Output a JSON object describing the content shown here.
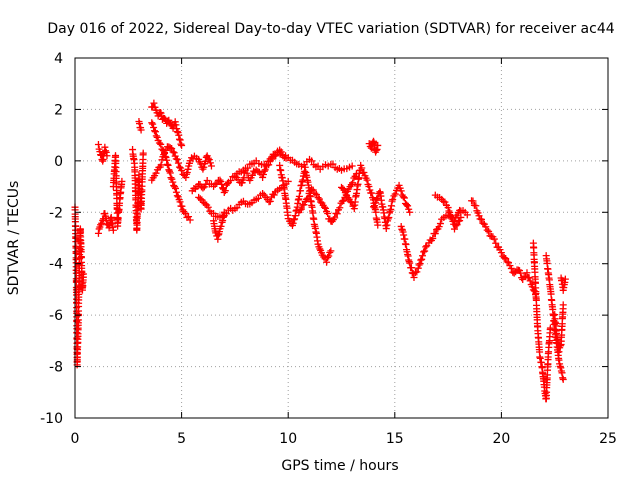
{
  "chart_data": {
    "type": "scatter",
    "title": "Day 016 of 2022, Sidereal Day-to-day VTEC variation (SDTVAR) for receiver ac44",
    "xlabel": "GPS time / hours",
    "ylabel": "SDTVAR / TECUs",
    "xlim": [
      0,
      25
    ],
    "ylim": [
      -10,
      4
    ],
    "xticks": [
      0,
      5,
      10,
      15,
      20,
      25
    ],
    "yticks": [
      -10,
      -8,
      -6,
      -4,
      -2,
      0,
      2,
      4
    ],
    "grid": true,
    "marker": "+",
    "color": "#ff0000",
    "series": [
      {
        "name": "SDTVAR",
        "segments": [
          {
            "x": [
              0.0,
              0.05,
              0.1,
              0.15,
              0.2,
              0.25,
              0.3,
              0.35,
              0.4
            ],
            "y": [
              -1.8,
              -3.5,
              -7.9,
              -6.5,
              -4.2,
              -2.6,
              -3.8,
              -5.0,
              -4.4
            ]
          },
          {
            "x": [
              1.1,
              1.2,
              1.3,
              1.4,
              1.5
            ],
            "y": [
              0.6,
              0.3,
              0.0,
              0.5,
              0.2
            ]
          },
          {
            "x": [
              1.1,
              1.2,
              1.3,
              1.4,
              1.5,
              1.6,
              1.7,
              1.8
            ],
            "y": [
              -2.8,
              -2.5,
              -2.3,
              -2.0,
              -2.4,
              -2.6,
              -2.2,
              -2.7
            ]
          },
          {
            "x": [
              1.8,
              1.9,
              2.0,
              2.1,
              2.2
            ],
            "y": [
              -1.0,
              0.2,
              -2.5,
              -1.5,
              -0.8
            ]
          },
          {
            "x": [
              2.7,
              2.8,
              2.9,
              3.0,
              3.1,
              3.2
            ],
            "y": [
              0.4,
              -0.2,
              -2.7,
              -0.6,
              -1.9,
              0.3
            ]
          },
          {
            "x": [
              3.0,
              3.05,
              3.1
            ],
            "y": [
              1.5,
              1.3,
              1.2
            ]
          },
          {
            "x": [
              3.6,
              3.7,
              3.8,
              3.9,
              4.0,
              4.1,
              4.2,
              4.3,
              4.4,
              4.5,
              4.6,
              4.7,
              4.8,
              4.9,
              5.0
            ],
            "y": [
              2.1,
              2.2,
              2.0,
              1.8,
              1.9,
              1.6,
              1.7,
              1.5,
              1.6,
              1.4,
              1.3,
              1.5,
              1.2,
              0.9,
              0.6
            ]
          },
          {
            "x": [
              3.6,
              3.8,
              4.0,
              4.2,
              4.4,
              4.6,
              4.8,
              5.0,
              5.2,
              5.4,
              5.6,
              5.8,
              6.0,
              6.2,
              6.4
            ],
            "y": [
              -0.7,
              -0.5,
              -0.2,
              0.3,
              0.6,
              0.4,
              0.0,
              -0.4,
              -0.6,
              0.0,
              0.2,
              0.1,
              -0.3,
              0.2,
              -0.2
            ]
          },
          {
            "x": [
              3.6,
              3.9,
              4.2,
              4.5,
              4.8,
              5.1,
              5.4
            ],
            "y": [
              1.5,
              0.8,
              0.3,
              -0.6,
              -1.3,
              -2.0,
              -2.3
            ]
          },
          {
            "x": [
              5.5,
              5.8,
              6.0,
              6.2,
              6.5,
              6.8,
              7.0,
              7.2,
              7.5,
              7.8,
              8.0,
              8.2,
              8.5,
              8.8,
              9.0,
              9.3,
              9.6,
              9.9
            ],
            "y": [
              -1.2,
              -0.9,
              -1.1,
              -0.8,
              -1.0,
              -0.7,
              -1.2,
              -0.8,
              -0.6,
              -0.9,
              -0.4,
              -0.7,
              -0.3,
              -0.6,
              -0.1,
              0.2,
              0.4,
              0.1
            ]
          },
          {
            "x": [
              5.8,
              6.1,
              6.4,
              6.7,
              7.0,
              7.3,
              7.6,
              7.9,
              8.2,
              8.5,
              8.8,
              9.1,
              9.4,
              9.7,
              10.0
            ],
            "y": [
              -1.4,
              -1.7,
              -2.0,
              -2.2,
              -2.1,
              -1.9,
              -1.8,
              -1.6,
              -1.7,
              -1.5,
              -1.3,
              -1.6,
              -1.2,
              -1.0,
              -0.8
            ]
          },
          {
            "x": [
              6.5,
              6.6,
              6.7,
              6.8,
              6.9,
              7.0
            ],
            "y": [
              -2.3,
              -2.8,
              -3.0,
              -2.6,
              -2.4,
              -2.0
            ]
          },
          {
            "x": [
              7.5,
              8.0,
              8.5,
              9.0,
              9.5,
              10.0,
              10.5,
              11.0,
              11.5,
              12.0,
              12.5,
              13.0
            ],
            "y": [
              -0.6,
              -0.3,
              0.0,
              -0.2,
              0.3,
              0.1,
              -0.2,
              0.0,
              -0.3,
              -0.1,
              -0.4,
              -0.2
            ]
          },
          {
            "x": [
              9.6,
              9.8,
              10.0,
              10.2,
              10.4,
              10.6,
              10.8,
              11.0,
              11.2,
              11.4,
              11.6,
              11.8,
              12.0
            ],
            "y": [
              -0.2,
              -1.0,
              -2.2,
              -2.5,
              -1.9,
              -1.0,
              -0.3,
              -1.2,
              -2.3,
              -3.2,
              -3.7,
              -3.9,
              -3.5
            ]
          },
          {
            "x": [
              10.5,
              10.8,
              11.1,
              11.4,
              11.7,
              12.0,
              12.3,
              12.6,
              12.9,
              13.2
            ],
            "y": [
              -2.0,
              -1.6,
              -1.1,
              -1.4,
              -1.8,
              -2.4,
              -2.0,
              -1.5,
              -1.0,
              -0.5
            ]
          },
          {
            "x": [
              12.5,
              12.8,
              13.1,
              13.4,
              13.7,
              14.0,
              14.2
            ],
            "y": [
              -1.0,
              -1.4,
              -1.8,
              -0.2,
              -0.8,
              -1.5,
              -2.5
            ]
          },
          {
            "x": [
              13.8,
              13.9,
              14.0,
              14.1,
              14.2
            ],
            "y": [
              0.7,
              0.5,
              0.8,
              0.3,
              0.6
            ]
          },
          {
            "x": [
              14.0,
              14.3,
              14.6,
              14.9,
              15.2,
              15.5,
              15.7
            ],
            "y": [
              -1.8,
              -1.2,
              -2.6,
              -1.5,
              -1.0,
              -1.6,
              -2.0
            ]
          },
          {
            "x": [
              15.3,
              15.5,
              15.7,
              15.9,
              16.1,
              16.3,
              16.5
            ],
            "y": [
              -2.5,
              -3.2,
              -4.0,
              -4.5,
              -4.2,
              -3.7,
              -3.3
            ]
          },
          {
            "x": [
              16.6,
              16.9,
              17.2,
              17.5,
              17.8,
              18.1,
              18.4
            ],
            "y": [
              -3.2,
              -2.8,
              -2.3,
              -2.1,
              -2.3,
              -1.9,
              -2.1
            ]
          },
          {
            "x": [
              16.9,
              17.2,
              17.5,
              17.8,
              18.1
            ],
            "y": [
              -1.3,
              -1.5,
              -1.8,
              -2.6,
              -2.2
            ]
          },
          {
            "x": [
              18.6,
              18.8,
              19.0,
              19.2,
              19.4,
              19.6,
              19.8,
              20.0,
              20.2,
              20.4,
              20.6,
              20.8,
              21.0,
              21.2,
              21.4,
              21.6
            ],
            "y": [
              -1.5,
              -1.8,
              -2.2,
              -2.5,
              -2.8,
              -3.0,
              -3.3,
              -3.6,
              -3.8,
              -4.1,
              -4.4,
              -4.2,
              -4.6,
              -4.4,
              -4.8,
              -5.2
            ]
          },
          {
            "x": [
              21.5,
              21.6,
              21.7,
              21.8,
              21.9,
              22.0,
              22.1,
              22.2,
              22.3
            ],
            "y": [
              -3.2,
              -4.8,
              -6.5,
              -7.6,
              -8.0,
              -8.7,
              -9.3,
              -7.5,
              -6.5
            ]
          },
          {
            "x": [
              22.1,
              22.3,
              22.5,
              22.7,
              22.9
            ],
            "y": [
              -3.7,
              -5.0,
              -6.5,
              -7.8,
              -8.5
            ]
          },
          {
            "x": [
              22.5,
              22.6,
              22.7,
              22.8,
              22.9
            ],
            "y": [
              -6.0,
              -6.8,
              -7.4,
              -7.1,
              -5.6
            ]
          },
          {
            "x": [
              22.8,
              22.9,
              23.0
            ],
            "y": [
              -4.5,
              -5.0,
              -4.6
            ]
          }
        ]
      }
    ]
  }
}
